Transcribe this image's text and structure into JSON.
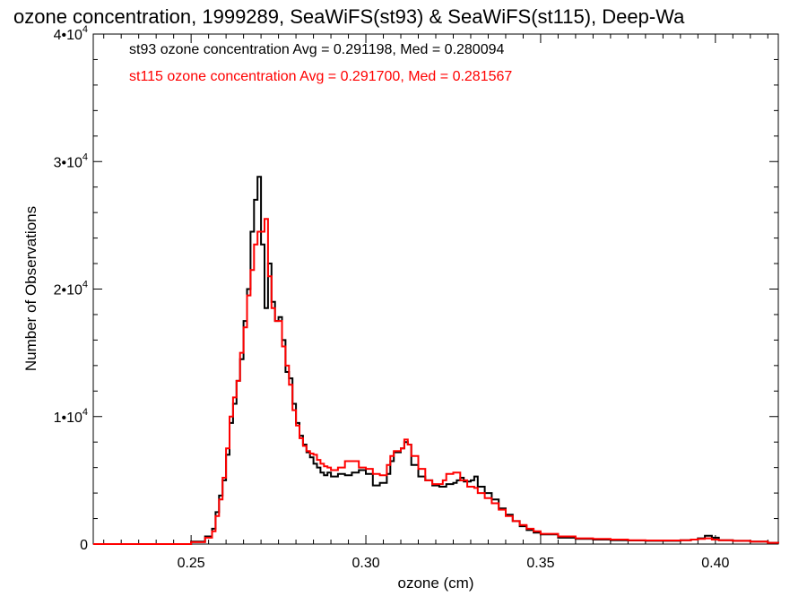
{
  "chart_data": {
    "type": "line",
    "title": "ozone concentration, 1999289, SeaWiFS(st93) & SeaWiFS(st115), Deep-Wa",
    "xlabel": "ozone (cm)",
    "ylabel": "Number of Observations",
    "xlim": [
      0.222,
      0.418
    ],
    "ylim": [
      0,
      40000
    ],
    "x_ticks": [
      {
        "value": 0.25,
        "label": "0.25"
      },
      {
        "value": 0.3,
        "label": "0.30"
      },
      {
        "value": 0.35,
        "label": "0.35"
      },
      {
        "value": 0.4,
        "label": "0.40"
      }
    ],
    "y_ticks": [
      {
        "value": 0,
        "label": "0",
        "exp": ""
      },
      {
        "value": 10000,
        "label": "1•10",
        "exp": "4"
      },
      {
        "value": 20000,
        "label": "2•10",
        "exp": "4"
      },
      {
        "value": 30000,
        "label": "3•10",
        "exp": "4"
      },
      {
        "value": 40000,
        "label": "4•10",
        "exp": "4"
      }
    ],
    "legend_placement": "top-left",
    "series": [
      {
        "name": "st93 ozone concentration Avg = 0.291198, Med = 0.280094",
        "color": "#000000",
        "points": [
          [
            0.222,
            0
          ],
          [
            0.245,
            0
          ],
          [
            0.25,
            200
          ],
          [
            0.254,
            600
          ],
          [
            0.256,
            1200
          ],
          [
            0.257,
            2500
          ],
          [
            0.258,
            3800
          ],
          [
            0.259,
            5000
          ],
          [
            0.26,
            7000
          ],
          [
            0.261,
            9500
          ],
          [
            0.262,
            11000
          ],
          [
            0.263,
            12800
          ],
          [
            0.264,
            14500
          ],
          [
            0.265,
            17500
          ],
          [
            0.266,
            20000
          ],
          [
            0.267,
            24500
          ],
          [
            0.268,
            27000
          ],
          [
            0.269,
            28800
          ],
          [
            0.27,
            23500
          ],
          [
            0.271,
            18500
          ],
          [
            0.272,
            22000
          ],
          [
            0.273,
            19000
          ],
          [
            0.274,
            17500
          ],
          [
            0.275,
            17800
          ],
          [
            0.276,
            16000
          ],
          [
            0.277,
            13500
          ],
          [
            0.278,
            13000
          ],
          [
            0.279,
            11000
          ],
          [
            0.28,
            9500
          ],
          [
            0.281,
            8500
          ],
          [
            0.282,
            7800
          ],
          [
            0.283,
            7200
          ],
          [
            0.284,
            6800
          ],
          [
            0.285,
            6300
          ],
          [
            0.286,
            6000
          ],
          [
            0.287,
            5600
          ],
          [
            0.288,
            5400
          ],
          [
            0.289,
            5600
          ],
          [
            0.29,
            5300
          ],
          [
            0.292,
            5500
          ],
          [
            0.294,
            5400
          ],
          [
            0.296,
            5600
          ],
          [
            0.298,
            5800
          ],
          [
            0.3,
            5500
          ],
          [
            0.302,
            4600
          ],
          [
            0.304,
            4800
          ],
          [
            0.306,
            5500
          ],
          [
            0.307,
            6500
          ],
          [
            0.308,
            7200
          ],
          [
            0.31,
            7500
          ],
          [
            0.311,
            8000
          ],
          [
            0.312,
            7800
          ],
          [
            0.313,
            6200
          ],
          [
            0.315,
            5300
          ],
          [
            0.317,
            5000
          ],
          [
            0.319,
            4600
          ],
          [
            0.321,
            4500
          ],
          [
            0.323,
            4700
          ],
          [
            0.325,
            4800
          ],
          [
            0.326,
            5000
          ],
          [
            0.327,
            5200
          ],
          [
            0.328,
            4900
          ],
          [
            0.33,
            5000
          ],
          [
            0.331,
            5300
          ],
          [
            0.332,
            4500
          ],
          [
            0.334,
            4000
          ],
          [
            0.336,
            3500
          ],
          [
            0.338,
            2800
          ],
          [
            0.34,
            2300
          ],
          [
            0.342,
            1800
          ],
          [
            0.344,
            1400
          ],
          [
            0.346,
            1100
          ],
          [
            0.348,
            900
          ],
          [
            0.35,
            750
          ],
          [
            0.355,
            500
          ],
          [
            0.36,
            400
          ],
          [
            0.365,
            350
          ],
          [
            0.37,
            300
          ],
          [
            0.375,
            280
          ],
          [
            0.38,
            250
          ],
          [
            0.385,
            250
          ],
          [
            0.39,
            300
          ],
          [
            0.393,
            350
          ],
          [
            0.395,
            450
          ],
          [
            0.397,
            650
          ],
          [
            0.399,
            500
          ],
          [
            0.401,
            300
          ],
          [
            0.405,
            250
          ],
          [
            0.41,
            200
          ],
          [
            0.415,
            100
          ],
          [
            0.418,
            50
          ]
        ]
      },
      {
        "name": "st115 ozone concentration Avg = 0.291700, Med = 0.281567",
        "color": "#ff0000",
        "points": [
          [
            0.222,
            0
          ],
          [
            0.247,
            0
          ],
          [
            0.25,
            150
          ],
          [
            0.254,
            500
          ],
          [
            0.256,
            1000
          ],
          [
            0.257,
            2200
          ],
          [
            0.258,
            3500
          ],
          [
            0.259,
            5200
          ],
          [
            0.26,
            7500
          ],
          [
            0.261,
            10000
          ],
          [
            0.262,
            11500
          ],
          [
            0.263,
            12800
          ],
          [
            0.264,
            15000
          ],
          [
            0.265,
            17000
          ],
          [
            0.266,
            19500
          ],
          [
            0.267,
            21500
          ],
          [
            0.268,
            23500
          ],
          [
            0.269,
            24500
          ],
          [
            0.27,
            24500
          ],
          [
            0.271,
            25500
          ],
          [
            0.272,
            21000
          ],
          [
            0.273,
            18500
          ],
          [
            0.274,
            17500
          ],
          [
            0.275,
            17500
          ],
          [
            0.276,
            15500
          ],
          [
            0.277,
            14000
          ],
          [
            0.278,
            12500
          ],
          [
            0.279,
            10500
          ],
          [
            0.28,
            9300
          ],
          [
            0.281,
            8300
          ],
          [
            0.282,
            7700
          ],
          [
            0.283,
            7300
          ],
          [
            0.284,
            7100
          ],
          [
            0.285,
            7000
          ],
          [
            0.286,
            6600
          ],
          [
            0.287,
            6300
          ],
          [
            0.288,
            6100
          ],
          [
            0.289,
            6000
          ],
          [
            0.29,
            5800
          ],
          [
            0.292,
            6000
          ],
          [
            0.294,
            6500
          ],
          [
            0.296,
            6500
          ],
          [
            0.298,
            6000
          ],
          [
            0.3,
            5900
          ],
          [
            0.302,
            5500
          ],
          [
            0.304,
            5400
          ],
          [
            0.306,
            6200
          ],
          [
            0.307,
            6900
          ],
          [
            0.308,
            7300
          ],
          [
            0.31,
            7500
          ],
          [
            0.311,
            8200
          ],
          [
            0.312,
            7800
          ],
          [
            0.313,
            6900
          ],
          [
            0.315,
            5900
          ],
          [
            0.317,
            5000
          ],
          [
            0.319,
            4700
          ],
          [
            0.321,
            4700
          ],
          [
            0.322,
            5000
          ],
          [
            0.323,
            5500
          ],
          [
            0.325,
            5600
          ],
          [
            0.327,
            5000
          ],
          [
            0.329,
            4500
          ],
          [
            0.331,
            4400
          ],
          [
            0.332,
            4000
          ],
          [
            0.334,
            3600
          ],
          [
            0.336,
            3200
          ],
          [
            0.338,
            2700
          ],
          [
            0.34,
            2200
          ],
          [
            0.342,
            1800
          ],
          [
            0.344,
            1500
          ],
          [
            0.346,
            1200
          ],
          [
            0.348,
            1000
          ],
          [
            0.35,
            800
          ],
          [
            0.355,
            600
          ],
          [
            0.36,
            450
          ],
          [
            0.365,
            400
          ],
          [
            0.37,
            350
          ],
          [
            0.375,
            300
          ],
          [
            0.38,
            280
          ],
          [
            0.385,
            280
          ],
          [
            0.39,
            300
          ],
          [
            0.393,
            350
          ],
          [
            0.395,
            400
          ],
          [
            0.397,
            450
          ],
          [
            0.399,
            350
          ],
          [
            0.401,
            300
          ],
          [
            0.405,
            250
          ],
          [
            0.41,
            200
          ],
          [
            0.415,
            100
          ],
          [
            0.418,
            50
          ]
        ]
      }
    ]
  }
}
